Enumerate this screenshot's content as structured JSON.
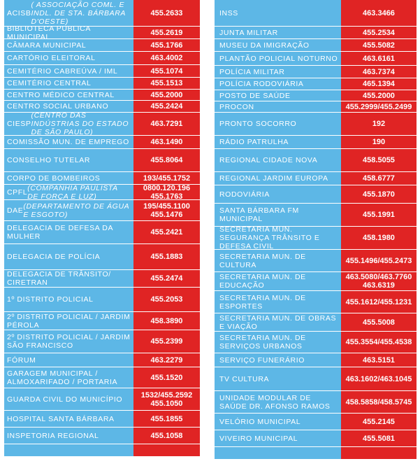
{
  "left": [
    {
      "name": "ACISB ( ASSOCIAÇÃO COML. E INDL. DE STA. BÁRBARA D'OESTE)",
      "phone": "455.2633"
    },
    {
      "name": "BIBLIOTECA PÚBLICA MUNICIPAL",
      "phone": "455.2619"
    },
    {
      "name": "CÂMARA MUNICIPAL",
      "phone": "455.1766"
    },
    {
      "name": "CARTÓRIO ELEITORAL",
      "phone": "463.4002"
    },
    {
      "name": "CEMITÉRIO CABREÚVA / IML",
      "phone": "455.1074"
    },
    {
      "name": "CEMITÉRIO CENTRAL",
      "phone": "455.1513"
    },
    {
      "name": "CENTRO MÉDICO CENTRAL",
      "phone": "455.2000"
    },
    {
      "name": "CENTRO SOCIAL URBANO",
      "phone": "455.2424"
    },
    {
      "name": "CIESP (CENTRO DAS INDÚSTRIAS DO ESTADO DE SÃO PAULO)",
      "phone": "463.7291"
    },
    {
      "name": "COMISSÃO MUN. DE EMPREGO",
      "phone": "463.1490"
    },
    {
      "name": "CONSELHO TUTELAR",
      "phone": "455.8064"
    },
    {
      "name": "CORPO DE BOMBEIROS",
      "phone": "193/455.1752"
    },
    {
      "name": "CPFL (COMPANHIA PAULISTA DE FORÇA E LUZ)",
      "phone": "0800.120.196\n455.1763"
    },
    {
      "name": "DAE (DEPARTAMENTO DE ÁGUA E ESGOTO)",
      "phone": "195/455.1100\n455.1476"
    },
    {
      "name": "DELEGACIA DE DEFESA DA MULHER",
      "phone": "455.2421"
    },
    {
      "name": "DELEGACIA DE POLÍCIA",
      "phone": "455.1883"
    },
    {
      "name": "DELEGACIA DE TRÂNSITO/ CIRETRAN",
      "phone": "455.2474"
    },
    {
      "name": "1º DISTRITO POLICIAL",
      "phone": "455.2053"
    },
    {
      "name": "2º DISTRITO POLICIAL / JARDIM PÉROLA",
      "phone": "458.3890"
    },
    {
      "name": "2º DISTRITO POLICIAL / JARDIM SÃO FRANCISCO",
      "phone": "455.2399"
    },
    {
      "name": "FÓRUM",
      "phone": "463.2279"
    },
    {
      "name": "GARAGEM MUNICIPAL / ALMOXARIFADO / PORTARIA",
      "phone": "455.1520"
    },
    {
      "name": "GUARDA CIVIL DO MUNICÍPIO",
      "phone": "1532/455.2592\n455.1050"
    },
    {
      "name": "HOSPITAL SANTA BÁRBARA",
      "phone": "455.1855"
    },
    {
      "name": "INSPETORIA REGIONAL",
      "phone": "455.1058"
    },
    {
      "name": "",
      "phone": ""
    }
  ],
  "right": [
    {
      "name": "INSS",
      "phone": "463.3466"
    },
    {
      "name": "JUNTA MILITAR",
      "phone": "455.2534"
    },
    {
      "name": "MUSEU DA IMIGRAÇÃO",
      "phone": "455.5082"
    },
    {
      "name": "PLANTÃO POLICIAL NOTURNO",
      "phone": "463.6161"
    },
    {
      "name": "POLÍCIA MILITAR",
      "phone": "463.7374"
    },
    {
      "name": "POLÍCIA RODOVIÁRIA",
      "phone": "465.1394"
    },
    {
      "name": "POSTO DE SAÚDE",
      "phone": "455.2000"
    },
    {
      "name": "PROCON",
      "phone": "455.2999/455.2499"
    },
    {
      "name": "PRONTO SOCORRO",
      "phone": "192"
    },
    {
      "name": "RÁDIO PATRULHA",
      "phone": "190"
    },
    {
      "name": "REGIONAL CIDADE NOVA",
      "phone": "458.5055"
    },
    {
      "name": "REGIONAL JARDIM EUROPA",
      "phone": "458.6777"
    },
    {
      "name": "RODOVIÁRIA",
      "phone": "455.1870"
    },
    {
      "name": "SANTA BÁRBARA FM MUNICIPAL",
      "phone": "455.1991"
    },
    {
      "name": "SECRETARIA MUN. SEGURANÇA TRÂNSITO E DEFESA CIVIL",
      "phone": "458.1980"
    },
    {
      "name": "SECRETARIA MUN. DE CULTURA",
      "phone": "455.1496/455.2473"
    },
    {
      "name": "SECRETARIA MUN. DE EDUCAÇÃO",
      "phone": "463.5080/463.7760\n463.6319"
    },
    {
      "name": "SECRETARIA MUN. DE ESPORTES",
      "phone": "455.1612/455.1231"
    },
    {
      "name": "SECRETARIA MUN. DE OBRAS E VIAÇÃO",
      "phone": "455.5008"
    },
    {
      "name": "SECRETARIA MUN. DE SERVIÇOS URBANOS",
      "phone": "455.3554/455.4538"
    },
    {
      "name": "SERVIÇO FUNERÁRIO",
      "phone": "463.5151"
    },
    {
      "name": "TV CULTURA",
      "phone": "463.1602/463.1045"
    },
    {
      "name": "UNIDADE MODULAR DE SAÚDE DR. AFONSO RAMOS",
      "phone": "458.5858/458.5745"
    },
    {
      "name": "VELÓRIO MUNICIPAL",
      "phone": "455.2145"
    },
    {
      "name": "VIVEIRO MUNICIPAL",
      "phone": "455.5081"
    },
    {
      "name": "",
      "phone": ""
    }
  ]
}
